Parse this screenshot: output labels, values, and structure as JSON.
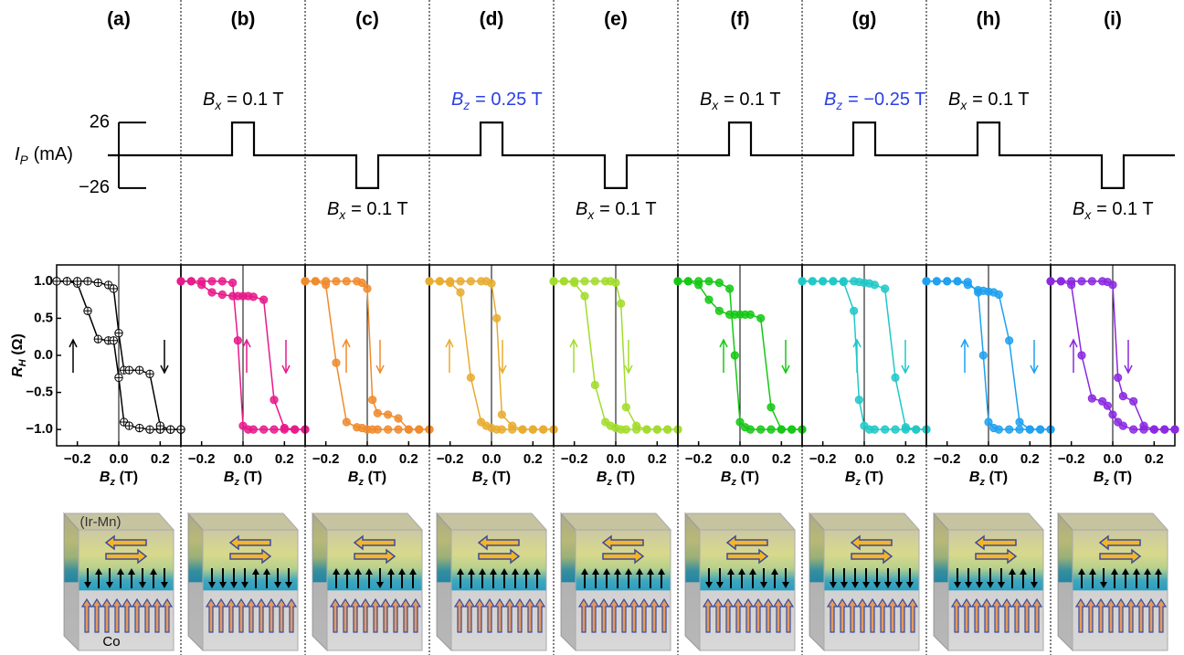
{
  "chart_data": [
    {
      "type": "pulse",
      "categories": [
        null,
        null,
        null,
        null,
        null,
        null,
        null,
        null,
        null
      ],
      "values": [
        0,
        26,
        -26,
        26,
        -26,
        26,
        26,
        26,
        -26
      ],
      "color": "#000000",
      "ylabel": {
        "symbol": "I",
        "subscript": "P",
        "unit": "(mA)"
      },
      "ylim": [
        -58,
        58
      ],
      "yticks": [
        26,
        {
          "value": -26,
          "label": "−26"
        }
      ],
      "annotations": [
        null,
        {
          "symbol": "B",
          "subscript": "x",
          "text": "= 0.1 T",
          "color": "#000000"
        },
        {
          "symbol": "B",
          "subscript": "x",
          "text": "= 0.1 T",
          "color": "#000000"
        },
        {
          "symbol": "B",
          "subscript": "z",
          "text": "= 0.25 T",
          "color": "#2a3fe6"
        },
        {
          "symbol": "B",
          "subscript": "x",
          "text": "= 0.1 T",
          "color": "#000000"
        },
        {
          "symbol": "B",
          "subscript": "x",
          "text": "= 0.1 T",
          "color": "#000000"
        },
        {
          "symbol": "B",
          "subscript": "z",
          "text": "= −0.25 T",
          "color": "#2a3fe6"
        },
        {
          "symbol": "B",
          "subscript": "x",
          "text": "= 0.1 T",
          "color": "#000000"
        },
        {
          "symbol": "B",
          "subscript": "x",
          "text": "= 0.1 T",
          "color": "#000000"
        }
      ]
    },
    {
      "type": "line",
      "title": "(a)",
      "marker": "crossed-circle",
      "ylabel": {
        "symbol": "R",
        "subscript": "H",
        "unit": "(Ω)"
      },
      "xlabel": {
        "symbol": "B",
        "subscript": "z",
        "unit": "(T)"
      },
      "x": [
        -0.3,
        -0.25,
        -0.2,
        -0.15,
        -0.1,
        -0.05,
        -0.025,
        0,
        0.025,
        0.05,
        0.1,
        0.15,
        0.2,
        0.25,
        0.3
      ],
      "xlim": [
        -0.3,
        0.3
      ],
      "xticks": [
        {
          "value": -0.2,
          "label": "−0.2"
        },
        {
          "value": 0,
          "label": "0.0"
        },
        0.2
      ],
      "ylim": [
        -1.22,
        1.22
      ],
      "yticks": [
        {
          "value": 1,
          "label": "1.0"
        },
        0.5,
        {
          "value": 0,
          "label": "0.0"
        },
        {
          "value": -0.5,
          "label": "−0.5"
        },
        {
          "value": -1,
          "label": "−1.0"
        }
      ],
      "series": [
        {
          "color": "#000000",
          "values": [
            1,
            1,
            0.97,
            0.6,
            0.22,
            0.2,
            0.2,
            -0.3,
            -0.9,
            -0.95,
            -0.98,
            -1,
            -1,
            -1,
            -1
          ]
        },
        {
          "color": "#000000",
          "values": [
            1,
            1,
            1,
            1,
            0.98,
            0.95,
            0.9,
            0.3,
            -0.2,
            -0.2,
            -0.2,
            -0.25,
            -0.95,
            -1,
            -1
          ]
        }
      ]
    },
    {
      "type": "line",
      "title": "(b)",
      "marker": "filled",
      "xlabel": {
        "symbol": "B",
        "subscript": "z",
        "unit": "(T)"
      },
      "x": [
        -0.3,
        -0.25,
        -0.2,
        -0.15,
        -0.1,
        -0.05,
        -0.025,
        0,
        0.025,
        0.05,
        0.1,
        0.15,
        0.2,
        0.25,
        0.3
      ],
      "xlim": [
        -0.3,
        0.3
      ],
      "xticks": [
        {
          "value": -0.2,
          "label": "−0.2"
        },
        {
          "value": 0,
          "label": "0.0"
        },
        0.2
      ],
      "ylim": [
        -1.22,
        1.22
      ],
      "series": [
        {
          "color": "#e8198b",
          "values": [
            1,
            1,
            1,
            1,
            1,
            0.98,
            0.2,
            -0.95,
            -1,
            -1,
            -1,
            -1,
            -1,
            -1,
            -1
          ]
        },
        {
          "color": "#e8198b",
          "values": [
            1,
            1,
            0.95,
            0.85,
            0.82,
            0.8,
            0.8,
            0.8,
            0.8,
            0.79,
            0.75,
            -0.6,
            -0.98,
            -1,
            -1
          ]
        }
      ]
    },
    {
      "type": "line",
      "title": "(c)",
      "marker": "filled",
      "xlabel": {
        "symbol": "B",
        "subscript": "z",
        "unit": "(T)"
      },
      "x": [
        -0.3,
        -0.25,
        -0.2,
        -0.15,
        -0.1,
        -0.05,
        -0.025,
        0,
        0.025,
        0.05,
        0.1,
        0.15,
        0.2,
        0.25,
        0.3
      ],
      "xlim": [
        -0.3,
        0.3
      ],
      "xticks": [
        {
          "value": -0.2,
          "label": "−0.2"
        },
        {
          "value": 0,
          "label": "0.0"
        },
        0.2
      ],
      "ylim": [
        -1.22,
        1.22
      ],
      "series": [
        {
          "color": "#f08a2c",
          "values": [
            1,
            1,
            0.95,
            -0.1,
            -0.9,
            -0.97,
            -0.98,
            -1,
            -1,
            -1,
            -1,
            -1,
            -1,
            -1,
            -1
          ]
        },
        {
          "color": "#f08a2c",
          "values": [
            1,
            1,
            1,
            1,
            1,
            1,
            0.98,
            0.9,
            -0.6,
            -0.78,
            -0.8,
            -0.85,
            -1,
            -1,
            -1
          ]
        }
      ]
    },
    {
      "type": "line",
      "title": "(d)",
      "marker": "filled",
      "xlabel": {
        "symbol": "B",
        "subscript": "z",
        "unit": "(T)"
      },
      "x": [
        -0.3,
        -0.25,
        -0.2,
        -0.15,
        -0.1,
        -0.05,
        -0.025,
        0,
        0.025,
        0.05,
        0.1,
        0.15,
        0.2,
        0.25,
        0.3
      ],
      "xlim": [
        -0.3,
        0.3
      ],
      "xticks": [
        {
          "value": -0.2,
          "label": "−0.2"
        },
        {
          "value": 0,
          "label": "0.0"
        },
        0.2
      ],
      "ylim": [
        -1.22,
        1.22
      ],
      "series": [
        {
          "color": "#e8ac30",
          "values": [
            1,
            1,
            0.98,
            0.85,
            -0.3,
            -0.9,
            -0.95,
            -0.98,
            -1,
            -1,
            -1,
            -1,
            -1,
            -1,
            -1
          ]
        },
        {
          "color": "#e8ac30",
          "values": [
            1,
            1,
            1,
            1,
            1,
            1,
            1,
            0.97,
            0.5,
            -0.8,
            -0.95,
            -1,
            -1,
            -1,
            -1
          ]
        }
      ]
    },
    {
      "type": "line",
      "title": "(e)",
      "marker": "filled",
      "xlabel": {
        "symbol": "B",
        "subscript": "z",
        "unit": "(T)"
      },
      "x": [
        -0.3,
        -0.25,
        -0.2,
        -0.15,
        -0.1,
        -0.05,
        -0.025,
        0,
        0.025,
        0.05,
        0.1,
        0.15,
        0.2,
        0.25,
        0.3
      ],
      "xlim": [
        -0.3,
        0.3
      ],
      "xticks": [
        {
          "value": -0.2,
          "label": "−0.2"
        },
        {
          "value": 0,
          "label": "0.0"
        },
        0.2
      ],
      "ylim": [
        -1.22,
        1.22
      ],
      "series": [
        {
          "color": "#a2dc2c",
          "values": [
            1,
            1,
            0.98,
            0.8,
            -0.4,
            -0.9,
            -0.95,
            -0.98,
            -1,
            -1,
            -1,
            -1,
            -1,
            -1,
            -1
          ]
        },
        {
          "color": "#a2dc2c",
          "values": [
            1,
            1,
            1,
            1,
            1,
            1,
            1,
            0.98,
            0.7,
            -0.7,
            -0.95,
            -1,
            -1,
            -1,
            -1
          ]
        }
      ]
    },
    {
      "type": "line",
      "title": "(f)",
      "marker": "filled",
      "xlabel": {
        "symbol": "B",
        "subscript": "z",
        "unit": "(T)"
      },
      "x": [
        -0.3,
        -0.25,
        -0.2,
        -0.15,
        -0.1,
        -0.05,
        -0.025,
        0,
        0.025,
        0.05,
        0.1,
        0.15,
        0.2,
        0.25,
        0.3
      ],
      "xlim": [
        -0.3,
        0.3
      ],
      "xticks": [
        {
          "value": -0.2,
          "label": "−0.2"
        },
        {
          "value": 0,
          "label": "0.0"
        },
        0.2
      ],
      "ylim": [
        -1.22,
        1.22
      ],
      "series": [
        {
          "color": "#14c814",
          "values": [
            1,
            1,
            1,
            1,
            0.98,
            0.9,
            0,
            -0.9,
            -0.97,
            -1,
            -1,
            -1,
            -1,
            -1,
            -1
          ]
        },
        {
          "color": "#14c814",
          "values": [
            1,
            1,
            0.95,
            0.75,
            0.6,
            0.55,
            0.55,
            0.55,
            0.55,
            0.55,
            0.5,
            -0.7,
            -1,
            -1,
            -1
          ]
        }
      ]
    },
    {
      "type": "line",
      "title": "(g)",
      "marker": "filled",
      "xlabel": {
        "symbol": "B",
        "subscript": "z",
        "unit": "(T)"
      },
      "x": [
        -0.3,
        -0.25,
        -0.2,
        -0.15,
        -0.1,
        -0.05,
        -0.025,
        0,
        0.025,
        0.05,
        0.1,
        0.15,
        0.2,
        0.25,
        0.3
      ],
      "xlim": [
        -0.3,
        0.3
      ],
      "xticks": [
        {
          "value": -0.2,
          "label": "−0.2"
        },
        {
          "value": 0,
          "label": "0.0"
        },
        0.2
      ],
      "ylim": [
        -1.22,
        1.22
      ],
      "series": [
        {
          "color": "#20c8c8",
          "values": [
            1,
            1,
            1,
            1,
            0.99,
            0.6,
            -0.6,
            -0.95,
            -1,
            -1,
            -1,
            -1,
            -1,
            -1,
            -1
          ]
        },
        {
          "color": "#20c8c8",
          "values": [
            1,
            1,
            1,
            1,
            1,
            1,
            0.99,
            0.98,
            0.97,
            0.95,
            0.9,
            -0.3,
            -0.97,
            -1,
            -1
          ]
        }
      ]
    },
    {
      "type": "line",
      "title": "(h)",
      "marker": "filled",
      "xlabel": {
        "symbol": "B",
        "subscript": "z",
        "unit": "(T)"
      },
      "x": [
        -0.3,
        -0.25,
        -0.2,
        -0.15,
        -0.1,
        -0.05,
        -0.025,
        0,
        0.025,
        0.05,
        0.1,
        0.15,
        0.2,
        0.25,
        0.3
      ],
      "xlim": [
        -0.3,
        0.3
      ],
      "xticks": [
        {
          "value": -0.2,
          "label": "−0.2"
        },
        {
          "value": 0,
          "label": "0.0"
        },
        0.2
      ],
      "ylim": [
        -1.22,
        1.22
      ],
      "series": [
        {
          "color": "#1ea0f0",
          "values": [
            1,
            1,
            1,
            1,
            0.99,
            0.85,
            0,
            -0.9,
            -0.98,
            -1,
            -1,
            -1,
            -1,
            -1,
            -1
          ]
        },
        {
          "color": "#1ea0f0",
          "values": [
            1,
            1,
            1,
            1,
            0.95,
            0.88,
            0.87,
            0.86,
            0.85,
            0.82,
            0.2,
            -0.9,
            -1,
            -1,
            -1
          ]
        }
      ]
    },
    {
      "type": "line",
      "title": "(i)",
      "marker": "filled",
      "xlabel": {
        "symbol": "B",
        "subscript": "z",
        "unit": "(T)"
      },
      "x": [
        -0.3,
        -0.25,
        -0.2,
        -0.15,
        -0.1,
        -0.05,
        -0.025,
        0,
        0.025,
        0.05,
        0.1,
        0.15,
        0.2,
        0.25,
        0.3
      ],
      "xlim": [
        -0.3,
        0.3
      ],
      "xticks": [
        {
          "value": -0.2,
          "label": "−0.2"
        },
        {
          "value": 0,
          "label": "0.0"
        },
        0.2
      ],
      "ylim": [
        -1.22,
        1.22
      ],
      "series": [
        {
          "color": "#8a28e0",
          "values": [
            1,
            1,
            0.95,
            0,
            -0.58,
            -0.62,
            -0.68,
            -0.8,
            -0.9,
            -0.95,
            -1,
            -1,
            -1,
            -1,
            -1
          ]
        },
        {
          "color": "#8a28e0",
          "values": [
            1,
            1,
            1,
            1,
            1,
            1,
            0.99,
            0.95,
            -0.3,
            -0.55,
            -0.62,
            -0.95,
            -1,
            -1,
            -1
          ]
        }
      ]
    }
  ],
  "schematic": {
    "labels": [
      "(Ir-Mn)",
      "Co"
    ]
  }
}
